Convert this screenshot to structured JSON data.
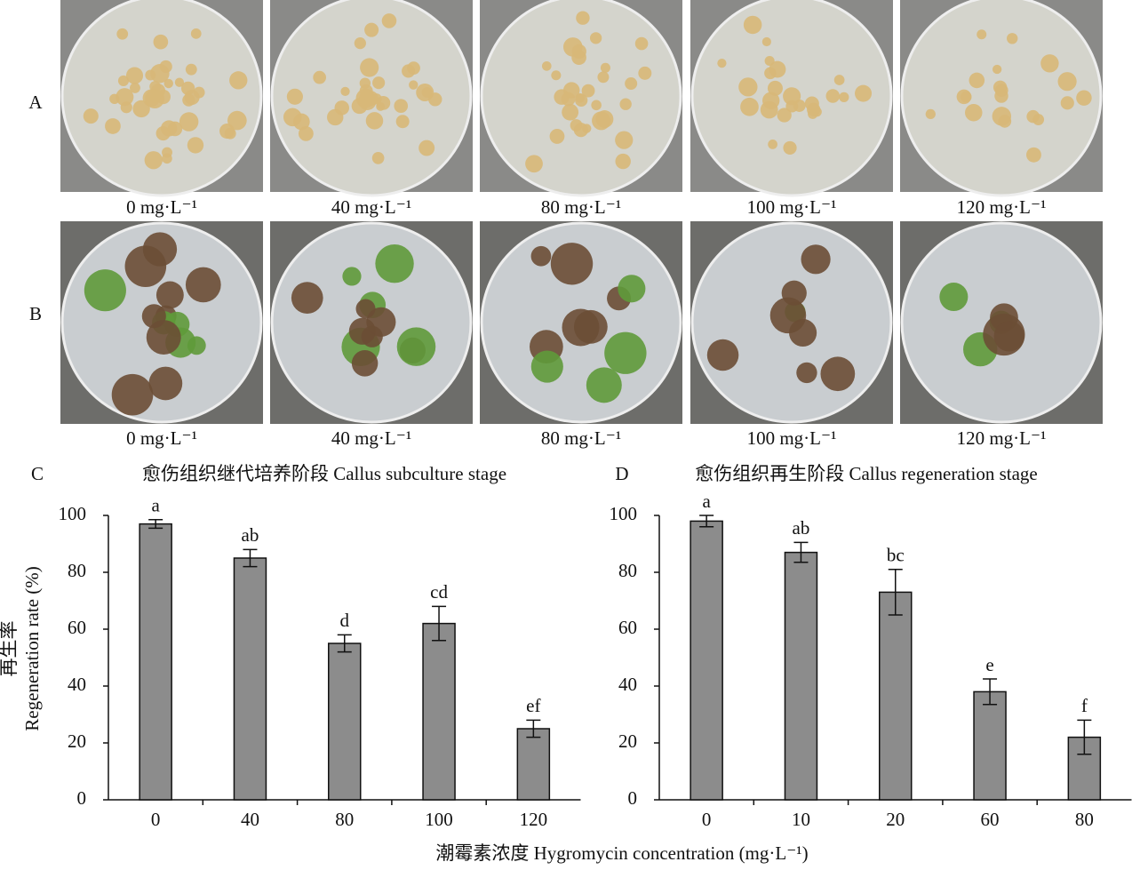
{
  "panel_labels": [
    "A",
    "B",
    "C",
    "D"
  ],
  "photo_rows": [
    {
      "captions": [
        "0 mg·L⁻¹",
        "40 mg·L⁻¹",
        "80 mg·L⁻¹",
        "100 mg·L⁻¹",
        "120 mg·L⁻¹"
      ]
    },
    {
      "captions": [
        "0 mg·L⁻¹",
        "40 mg·L⁻¹",
        "80 mg·L⁻¹",
        "100 mg·L⁻¹",
        "120 mg·L⁻¹"
      ]
    }
  ],
  "y_axis_label": [
    "再生率",
    "Regeneration rate (%)"
  ],
  "x_axis_label": "潮霉素浓度 Hygromycin concentration (mg·L⁻¹)",
  "chart_data": [
    {
      "type": "bar",
      "title": "愈伤组织继代培养阶段 Callus subculture stage",
      "color": "#8c8c8c",
      "categories": [
        "0",
        "40",
        "80",
        "100",
        "120"
      ],
      "values": [
        97,
        85,
        55,
        62,
        25
      ],
      "errors": [
        1.5,
        3,
        3,
        6,
        3
      ],
      "annotations": [
        "a",
        "ab",
        "d",
        "cd",
        "ef"
      ],
      "ylim": [
        0,
        100
      ],
      "yticks": [
        0,
        20,
        40,
        60,
        80,
        100
      ]
    },
    {
      "type": "bar",
      "title": "愈伤组织再生阶段 Callus regeneration stage",
      "color": "#8c8c8c",
      "categories": [
        "0",
        "10",
        "20",
        "60",
        "80"
      ],
      "values": [
        98,
        87,
        73,
        38,
        22
      ],
      "errors": [
        2,
        3.5,
        8,
        4.5,
        6
      ],
      "annotations": [
        "a",
        "ab",
        "bc",
        "e",
        "f"
      ],
      "ylim": [
        0,
        100
      ],
      "yticks": [
        0,
        20,
        40,
        60,
        80,
        100
      ]
    }
  ]
}
